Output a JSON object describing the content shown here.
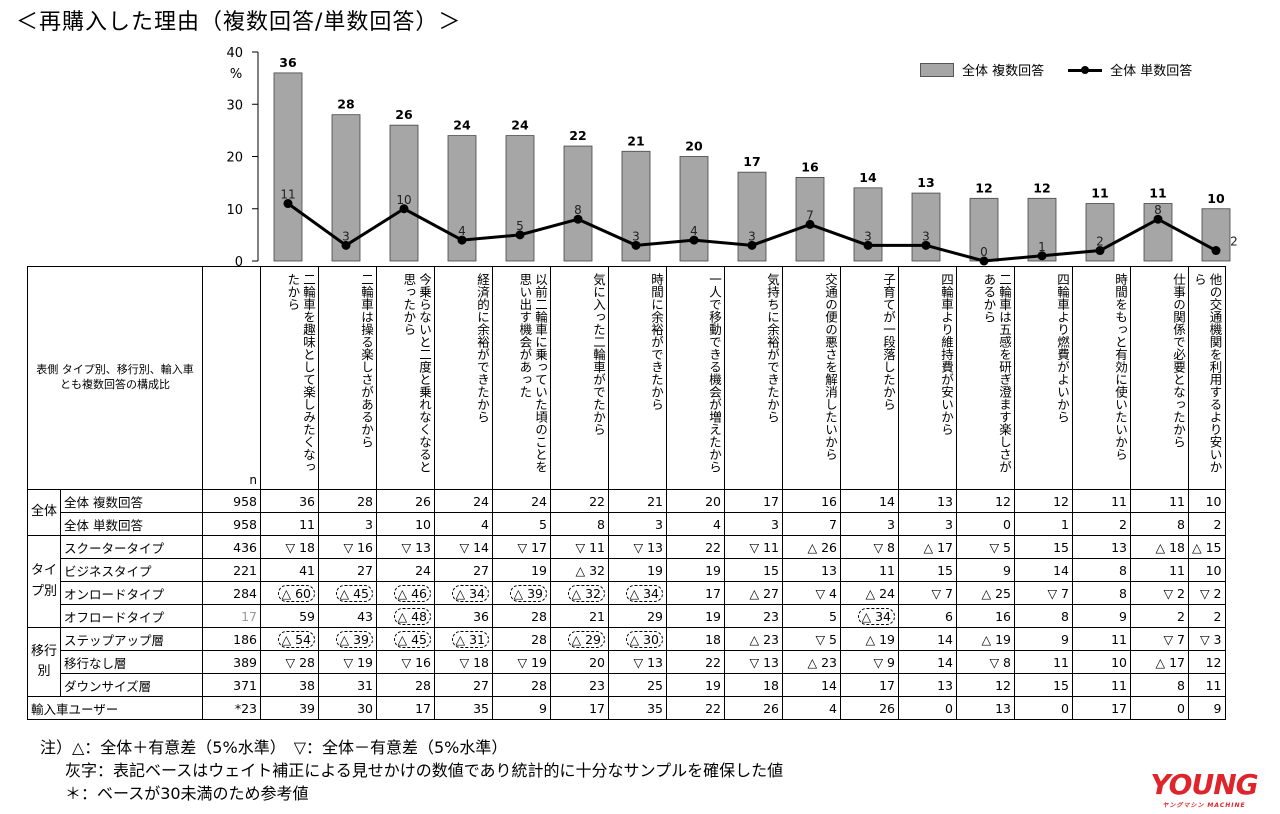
{
  "title": "＜再購入した理由（複数回答/単数回答）＞",
  "chart_data": {
    "type": "bar",
    "categories": [
      "二輪車を趣味として楽しみたくなったから",
      "二輪車は操る楽しさがあるから",
      "今乗らないと二度と乗れなくなると思ったから",
      "経済的に余裕ができたから",
      "以前二輪車に乗っていた頃のことを思い出す機会があった",
      "気に入った二輪車がでたから",
      "時間に余裕ができたから",
      "一人で移動できる機会が増えたから",
      "気持ちに余裕ができたから",
      "交通の便の悪さを解消したいから",
      "子育てが一段落したから",
      "四輪車より維持費が安いから",
      "二輪車は五感を研ぎ澄ます楽しさがあるから",
      "四輪車より燃費がよいから",
      "時間をもっと有効に使いたいから",
      "仕事の関係で必要となったから",
      "他の交通機関を利用するより安いから"
    ],
    "series": [
      {
        "name": "全体 複数回答",
        "type": "bar",
        "color": "#a6a6a6",
        "values": [
          36,
          28,
          26,
          24,
          24,
          22,
          21,
          20,
          17,
          16,
          14,
          13,
          12,
          12,
          11,
          11,
          10
        ]
      },
      {
        "name": "全体 単数回答",
        "type": "line",
        "color": "#000000",
        "values": [
          11,
          3,
          10,
          4,
          5,
          8,
          3,
          4,
          3,
          7,
          3,
          3,
          0,
          1,
          2,
          8,
          2
        ]
      }
    ],
    "ylim": [
      0,
      40
    ],
    "yticks": [
      "0",
      "10",
      "20",
      "30",
      "40"
    ],
    "yunit": "%",
    "legend_position": "top-right"
  },
  "table": {
    "stub_label": "表側 タイプ別、移行別、輸入車とも複数回答の構成比",
    "n_label": "n",
    "groups": [
      {
        "label": "全体",
        "rows": [
          {
            "label": "全体 複数回答",
            "n": "958",
            "cells": [
              "36",
              "28",
              "26",
              "24",
              "24",
              "22",
              "21",
              "20",
              "17",
              "16",
              "14",
              "13",
              "12",
              "12",
              "11",
              "11",
              "10"
            ]
          },
          {
            "label": "全体 単数回答",
            "n": "958",
            "cells": [
              "11",
              "3",
              "10",
              "4",
              "5",
              "8",
              "3",
              "4",
              "3",
              "7",
              "3",
              "3",
              "0",
              "1",
              "2",
              "8",
              "2"
            ]
          }
        ]
      },
      {
        "label": "タイプ別",
        "rows": [
          {
            "label": "スクータータイプ",
            "n": "436",
            "cells": [
              "▽ 18",
              "▽ 16",
              "▽ 13",
              "▽ 14",
              "▽ 17",
              "▽ 11",
              "▽ 13",
              "22",
              "▽ 11",
              "△ 26",
              "▽ 8",
              "△ 17",
              "▽ 5",
              "15",
              "13",
              "△ 18",
              "△ 15"
            ]
          },
          {
            "label": "ビジネスタイプ",
            "n": "221",
            "cells": [
              "41",
              "27",
              "24",
              "27",
              "19",
              "△ 32",
              "19",
              "19",
              "15",
              "13",
              "11",
              "15",
              "9",
              "14",
              "8",
              "11",
              "10"
            ]
          },
          {
            "label": "オンロードタイプ",
            "n": "284",
            "cells": [
              "△ 60",
              "△ 45",
              "△ 46",
              "△ 34",
              "△ 39",
              "△ 32",
              "△ 34",
              "17",
              "△ 27",
              "▽ 4",
              "△ 24",
              "▽ 7",
              "△ 25",
              "▽ 7",
              "8",
              "▽ 2",
              "▽ 2"
            ]
          },
          {
            "label": "オフロードタイプ",
            "n": "17",
            "n_grey": true,
            "cells": [
              "59",
              "43",
              "△ 48",
              "36",
              "28",
              "21",
              "29",
              "19",
              "23",
              "5",
              "△ 34",
              "6",
              "16",
              "8",
              "9",
              "2",
              "2"
            ]
          }
        ]
      },
      {
        "label": "移行別",
        "rows": [
          {
            "label": "ステップアップ層",
            "n": "186",
            "cells": [
              "△ 54",
              "△ 39",
              "△ 45",
              "△ 31",
              "28",
              "△ 29",
              "△ 30",
              "18",
              "△ 23",
              "▽ 5",
              "△ 19",
              "14",
              "△ 19",
              "9",
              "11",
              "▽ 7",
              "▽ 3"
            ]
          },
          {
            "label": "移行なし層",
            "n": "389",
            "cells": [
              "▽ 28",
              "▽ 19",
              "▽ 16",
              "▽ 18",
              "▽ 19",
              "20",
              "▽ 13",
              "22",
              "▽ 13",
              "△ 23",
              "▽ 9",
              "14",
              "▽ 8",
              "11",
              "10",
              "△ 17",
              "12"
            ]
          },
          {
            "label": "ダウンサイズ層",
            "n": "371",
            "cells": [
              "38",
              "31",
              "28",
              "27",
              "28",
              "23",
              "25",
              "19",
              "18",
              "14",
              "17",
              "13",
              "12",
              "15",
              "11",
              "8",
              "11"
            ]
          }
        ]
      },
      {
        "label": "",
        "rows": [
          {
            "label": "輸入車ユーザー",
            "n": "*23",
            "span": true,
            "cells": [
              "39",
              "30",
              "17",
              "35",
              "9",
              "17",
              "35",
              "22",
              "26",
              "4",
              "26",
              "0",
              "13",
              "0",
              "17",
              "0",
              "9"
            ]
          }
        ]
      }
    ],
    "highlights": {
      "4": [
        0,
        1,
        2,
        3,
        4,
        5,
        6
      ],
      "5": [
        2,
        10
      ],
      "6": [
        0,
        1,
        2,
        3,
        5,
        6
      ]
    }
  },
  "notes": [
    "注）△：全体＋有意差（5%水準）　▽：全体－有意差（5%水準）",
    "灰字：表記ベースはウェイト補正による見せかけの数値であり統計的に十分なサンプルを確保した値",
    "＊：ベースが30未満のため参考値"
  ],
  "logo": {
    "main": "YOUNG",
    "sub": "ヤングマシン MACHINE"
  }
}
